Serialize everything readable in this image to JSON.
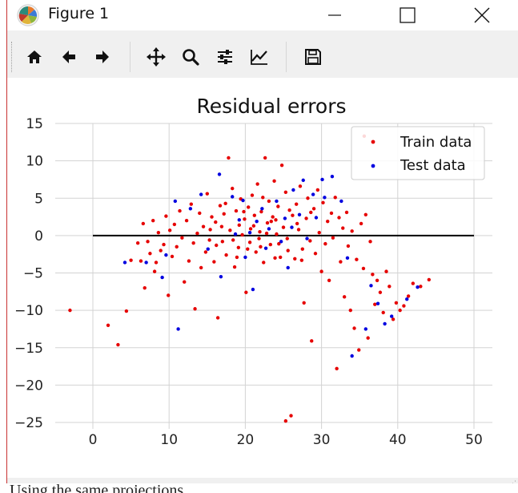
{
  "window": {
    "title": "Figure 1",
    "buttons": {
      "minimize": "minimize",
      "maximize": "maximize",
      "close": "close"
    }
  },
  "toolbar": {
    "items": [
      {
        "name": "home-button",
        "icon": "home-icon",
        "tooltip": "Reset original view"
      },
      {
        "name": "back-button",
        "icon": "arrow-left-icon",
        "tooltip": "Back to previous view"
      },
      {
        "name": "forward-button",
        "icon": "arrow-right-icon",
        "tooltip": "Forward to next view"
      },
      {
        "name": "pan-button",
        "icon": "move-icon",
        "tooltip": "Pan axes"
      },
      {
        "name": "zoom-button",
        "icon": "magnifier-icon",
        "tooltip": "Zoom to rectangle"
      },
      {
        "name": "subplots-button",
        "icon": "sliders-icon",
        "tooltip": "Configure subplots"
      },
      {
        "name": "edit-curves-button",
        "icon": "line-chart-icon",
        "tooltip": "Edit axis, curve and image parameters"
      },
      {
        "name": "save-button",
        "icon": "floppy-disk-icon",
        "tooltip": "Save the figure"
      }
    ]
  },
  "background_document": {
    "bottom_text": "Using the same projections"
  },
  "colors": {
    "train": "#e60000",
    "test": "#0000e0",
    "grid": "#d3d3d3",
    "zero_line": "#000000",
    "window_border": "#c83232"
  },
  "chart_data": {
    "type": "scatter",
    "title": "Residual errors",
    "xlabel": "",
    "ylabel": "",
    "xlim": [
      -5,
      52
    ],
    "ylim": [
      -27,
      15
    ],
    "xticks": [
      0,
      10,
      20,
      30,
      40,
      50
    ],
    "xtick_labels": [
      "0",
      "10",
      "20",
      "30",
      "40",
      "50"
    ],
    "yticks": [
      15,
      10,
      5,
      0,
      -5,
      -10,
      -15,
      -20,
      -25
    ],
    "ytick_labels": [
      "15",
      "10",
      "5",
      "0",
      "−5",
      "−10",
      "−15",
      "−20",
      "−25"
    ],
    "grid": true,
    "legend_position": "top-right",
    "hline": {
      "y": 0,
      "xmin": 0,
      "xmax": 50
    },
    "series": [
      {
        "name": "Train data",
        "points": [
          [
            -3.0,
            -10.0
          ],
          [
            2.0,
            -12.0
          ],
          [
            3.3,
            -14.6
          ],
          [
            4.4,
            -10.1
          ],
          [
            5.0,
            -3.3
          ],
          [
            5.9,
            -1.0
          ],
          [
            6.3,
            -3.4
          ],
          [
            6.6,
            1.6
          ],
          [
            6.8,
            -7.0
          ],
          [
            7.2,
            -0.8
          ],
          [
            7.5,
            -2.4
          ],
          [
            7.9,
            2.0
          ],
          [
            8.1,
            -4.8
          ],
          [
            8.3,
            -3.6
          ],
          [
            8.6,
            0.4
          ],
          [
            8.9,
            -2.0
          ],
          [
            9.3,
            -1.2
          ],
          [
            9.6,
            2.6
          ],
          [
            9.9,
            -8.0
          ],
          [
            10.1,
            0.7
          ],
          [
            10.4,
            -2.8
          ],
          [
            10.7,
            1.5
          ],
          [
            11.0,
            -1.5
          ],
          [
            11.4,
            3.3
          ],
          [
            11.7,
            -0.3
          ],
          [
            12.0,
            -6.2
          ],
          [
            12.3,
            2.0
          ],
          [
            12.6,
            -3.4
          ],
          [
            12.9,
            4.2
          ],
          [
            13.2,
            -1.0
          ],
          [
            13.4,
            -9.8
          ],
          [
            13.7,
            0.3
          ],
          [
            14.0,
            3.0
          ],
          [
            14.2,
            -4.3
          ],
          [
            14.5,
            1.2
          ],
          [
            14.8,
            -2.2
          ],
          [
            15.0,
            5.6
          ],
          [
            15.3,
            -0.6
          ],
          [
            15.6,
            2.5
          ],
          [
            15.9,
            -3.5
          ],
          [
            16.1,
            1.8
          ],
          [
            16.4,
            -11.0
          ],
          [
            16.7,
            4.0
          ],
          [
            17.0,
            -0.8
          ],
          [
            17.2,
            2.9
          ],
          [
            17.5,
            -2.6
          ],
          [
            17.8,
            10.4
          ],
          [
            18.0,
            0.7
          ],
          [
            18.3,
            6.3
          ],
          [
            18.6,
            -4.2
          ],
          [
            18.8,
            3.3
          ],
          [
            19.1,
            -1.6
          ],
          [
            19.4,
            4.9
          ],
          [
            19.6,
            0.1
          ],
          [
            19.9,
            2.2
          ],
          [
            20.1,
            -7.6
          ],
          [
            20.4,
            3.8
          ],
          [
            20.6,
            -0.9
          ],
          [
            20.9,
            5.4
          ],
          [
            21.1,
            1.3
          ],
          [
            21.4,
            -2.2
          ],
          [
            21.6,
            6.9
          ],
          [
            21.9,
            0.5
          ],
          [
            22.1,
            3.2
          ],
          [
            22.4,
            -3.6
          ],
          [
            22.6,
            10.4
          ],
          [
            22.9,
            1.7
          ],
          [
            23.1,
            4.6
          ],
          [
            23.3,
            -1.2
          ],
          [
            23.6,
            2.5
          ],
          [
            23.8,
            7.3
          ],
          [
            24.1,
            0.2
          ],
          [
            24.3,
            3.9
          ],
          [
            24.6,
            -2.9
          ],
          [
            24.8,
            9.4
          ],
          [
            25.0,
            1.1
          ],
          [
            25.3,
            5.8
          ],
          [
            25.5,
            -0.4
          ],
          [
            25.3,
            -24.8
          ],
          [
            26.0,
            -24.1
          ],
          [
            26.2,
            2.7
          ],
          [
            26.5,
            -3.1
          ],
          [
            26.7,
            4.2
          ],
          [
            27.0,
            0.8
          ],
          [
            27.2,
            6.6
          ],
          [
            27.5,
            -1.8
          ],
          [
            27.7,
            -9.0
          ],
          [
            28.0,
            2.3
          ],
          [
            28.2,
            5.0
          ],
          [
            28.5,
            -0.7
          ],
          [
            28.7,
            -14.1
          ],
          [
            29.0,
            3.6
          ],
          [
            29.2,
            -2.4
          ],
          [
            29.5,
            6.1
          ],
          [
            29.7,
            0.4
          ],
          [
            30.0,
            -4.8
          ],
          [
            30.2,
            4.4
          ],
          [
            30.5,
            -1.1
          ],
          [
            30.8,
            1.9
          ],
          [
            31.0,
            -6.0
          ],
          [
            31.3,
            3.0
          ],
          [
            31.5,
            -0.3
          ],
          [
            31.8,
            5.1
          ],
          [
            32.0,
            -17.8
          ],
          [
            32.3,
            2.4
          ],
          [
            32.5,
            -3.5
          ],
          [
            32.8,
            1.0
          ],
          [
            33.0,
            -8.2
          ],
          [
            33.3,
            3.1
          ],
          [
            33.5,
            -1.4
          ],
          [
            33.8,
            -10.0
          ],
          [
            34.0,
            0.6
          ],
          [
            34.3,
            -12.4
          ],
          [
            34.6,
            -3.2
          ],
          [
            34.9,
            -15.3
          ],
          [
            35.2,
            1.6
          ],
          [
            35.5,
            -4.4
          ],
          [
            35.8,
            2.8
          ],
          [
            36.1,
            -13.7
          ],
          [
            36.4,
            -0.8
          ],
          [
            36.7,
            -5.2
          ],
          [
            37.0,
            -9.2
          ],
          [
            37.3,
            -6.0
          ],
          [
            37.7,
            -7.6
          ],
          [
            38.1,
            -10.3
          ],
          [
            38.5,
            -4.8
          ],
          [
            38.9,
            -6.8
          ],
          [
            39.4,
            -11.2
          ],
          [
            39.8,
            -9.0
          ],
          [
            40.3,
            -10.0
          ],
          [
            40.8,
            -9.4
          ],
          [
            41.4,
            -8.1
          ],
          [
            42.0,
            -6.4
          ],
          [
            43.0,
            -6.8
          ],
          [
            44.1,
            -5.9
          ],
          [
            35.6,
            13.3
          ],
          [
            16.9,
            1.2
          ],
          [
            18.4,
            -0.6
          ],
          [
            19.2,
            1.4
          ],
          [
            20.7,
            0.9
          ],
          [
            21.8,
            -0.4
          ],
          [
            22.8,
            0.3
          ],
          [
            23.4,
            1.9
          ],
          [
            24.4,
            -1.1
          ],
          [
            17.4,
            4.3
          ],
          [
            19.8,
            3.2
          ],
          [
            21.2,
            2.7
          ],
          [
            22.3,
            5.1
          ],
          [
            24.0,
            2.1
          ],
          [
            25.8,
            3.4
          ],
          [
            26.8,
            1.6
          ],
          [
            28.6,
            3.1
          ],
          [
            15.4,
            0.8
          ],
          [
            16.2,
            -1.3
          ],
          [
            18.9,
            -2.9
          ],
          [
            20.3,
            -1.8
          ],
          [
            22.0,
            -1.5
          ],
          [
            23.9,
            -3.0
          ],
          [
            25.6,
            -2.0
          ],
          [
            27.4,
            -3.3
          ]
        ]
      },
      {
        "name": "Test data",
        "points": [
          [
            4.2,
            -3.6
          ],
          [
            7.0,
            -3.6
          ],
          [
            9.1,
            -5.6
          ],
          [
            9.6,
            -2.6
          ],
          [
            10.8,
            4.6
          ],
          [
            11.2,
            -12.5
          ],
          [
            12.8,
            3.6
          ],
          [
            14.2,
            5.5
          ],
          [
            15.1,
            -1.8
          ],
          [
            16.6,
            8.2
          ],
          [
            16.8,
            -5.5
          ],
          [
            18.3,
            5.2
          ],
          [
            19.2,
            2.1
          ],
          [
            19.7,
            4.7
          ],
          [
            20.0,
            -2.9
          ],
          [
            20.6,
            0.4
          ],
          [
            21.0,
            -7.2
          ],
          [
            21.5,
            1.9
          ],
          [
            22.2,
            3.6
          ],
          [
            23.1,
            0.9
          ],
          [
            24.1,
            4.6
          ],
          [
            24.7,
            -0.8
          ],
          [
            25.2,
            2.3
          ],
          [
            25.6,
            -4.3
          ],
          [
            26.3,
            6.1
          ],
          [
            27.1,
            2.8
          ],
          [
            27.6,
            7.4
          ],
          [
            28.1,
            -0.4
          ],
          [
            28.9,
            5.5
          ],
          [
            29.3,
            2.4
          ],
          [
            30.1,
            7.5
          ],
          [
            31.4,
            7.9
          ],
          [
            32.6,
            4.6
          ],
          [
            33.4,
            -3.0
          ],
          [
            34.0,
            -16.1
          ],
          [
            35.8,
            -12.5
          ],
          [
            36.5,
            -6.7
          ],
          [
            37.4,
            -9.1
          ],
          [
            38.3,
            -11.8
          ],
          [
            39.2,
            -10.8
          ],
          [
            41.2,
            -8.5
          ],
          [
            42.6,
            -6.9
          ],
          [
            30.4,
            5.1
          ],
          [
            26.1,
            1.1
          ],
          [
            22.7,
            -1.7
          ],
          [
            18.7,
            0.2
          ]
        ]
      }
    ]
  }
}
